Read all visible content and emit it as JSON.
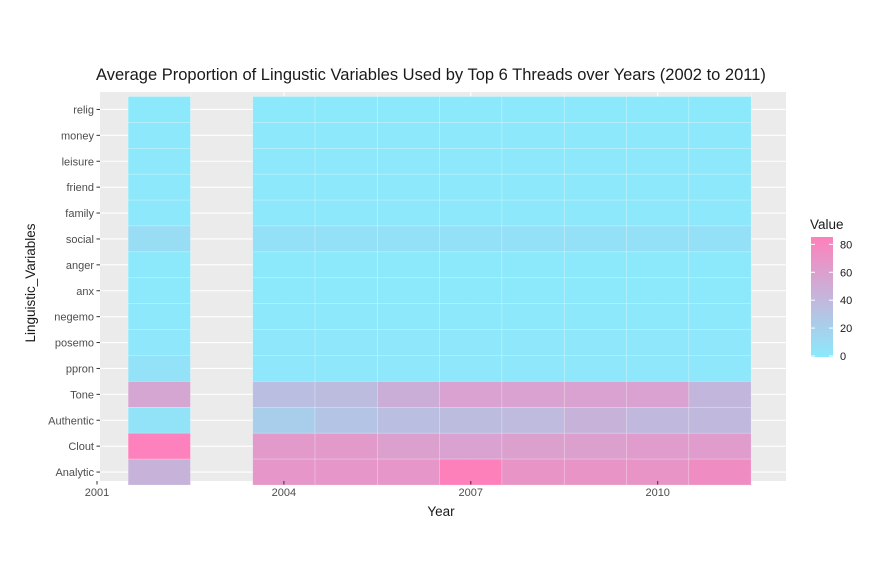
{
  "chart_data": {
    "type": "heatmap",
    "title": "Average Proportion of Lingustic Variables Used by Top 6 Threads over Years (2002 to 2011)",
    "xlabel": "Year",
    "ylabel": "Linguistic_Variables",
    "x_ticks": [
      2001,
      2004,
      2007,
      2010
    ],
    "xlim": [
      2001,
      2012
    ],
    "years": [
      2002,
      2004,
      2005,
      2006,
      2007,
      2008,
      2009,
      2010,
      2011
    ],
    "variables_top_to_bottom": [
      "relig",
      "money",
      "leisure",
      "friend",
      "family",
      "social",
      "anger",
      "anx",
      "negemo",
      "posemo",
      "ppron",
      "Tone",
      "Authentic",
      "Clout",
      "Analytic"
    ],
    "values": [
      [
        0,
        0,
        0,
        0,
        0,
        0,
        0,
        0,
        0
      ],
      [
        1,
        1,
        1,
        1,
        1,
        1,
        1,
        1,
        1
      ],
      [
        1,
        1,
        1,
        1,
        1,
        1,
        1,
        1,
        1
      ],
      [
        1,
        1,
        1,
        1,
        1,
        1,
        1,
        1,
        1
      ],
      [
        1,
        1,
        1,
        1,
        1,
        1,
        1,
        1,
        1
      ],
      [
        10,
        7,
        7,
        7,
        7,
        7,
        7,
        7,
        7
      ],
      [
        0,
        0,
        0,
        0,
        0,
        0,
        0,
        0,
        0
      ],
      [
        0,
        0,
        0,
        0,
        0,
        0,
        0,
        0,
        0
      ],
      [
        1,
        1,
        1,
        1,
        1,
        1,
        1,
        1,
        1
      ],
      [
        2,
        2,
        2,
        2,
        2,
        2,
        2,
        2,
        2
      ],
      [
        6,
        2,
        2,
        2,
        2,
        2,
        2,
        2,
        2
      ],
      [
        55,
        35,
        37,
        48,
        58,
        58,
        58,
        58,
        42
      ],
      [
        5,
        22,
        30,
        35,
        37,
        38,
        45,
        40,
        40
      ],
      [
        85,
        65,
        65,
        60,
        58,
        60,
        60,
        63,
        63
      ],
      [
        45,
        68,
        68,
        68,
        88,
        70,
        70,
        70,
        75
      ]
    ],
    "legend": {
      "title": "Value",
      "ticks": [
        0,
        20,
        40,
        60,
        80
      ],
      "range": [
        0,
        86
      ],
      "low_color": "#8be9fb",
      "high_color": "#fe80bb"
    },
    "grid": true,
    "legend_position": "right"
  }
}
